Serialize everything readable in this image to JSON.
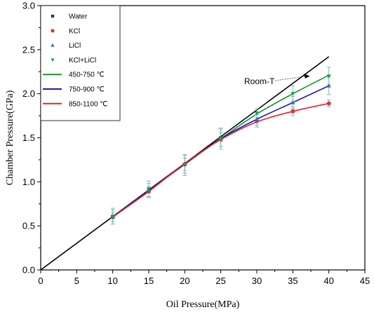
{
  "chart_data": {
    "type": "scatter",
    "xlabel": "Oil Pressure(MPa)",
    "ylabel": "Chamber Pressure(GPa)",
    "xlim": [
      0,
      45
    ],
    "ylim": [
      0.0,
      3.0
    ],
    "xticks": [
      "0",
      "5",
      "10",
      "15",
      "20",
      "25",
      "30",
      "35",
      "40",
      "45"
    ],
    "yticks": [
      "0.0",
      "0.5",
      "1.0",
      "1.5",
      "2.0",
      "2.5",
      "3.0"
    ],
    "grid": false,
    "legend_position": "top-left",
    "series": [
      {
        "name": "Water",
        "marker": "square",
        "color": "#333333",
        "x": [
          10,
          15,
          20,
          25
        ],
        "y": [
          0.6,
          0.9,
          1.2,
          1.5
        ]
      },
      {
        "name": "KCl",
        "marker": "circle",
        "color": "#e8302a",
        "x": [
          10,
          15,
          20,
          25,
          30,
          35,
          40
        ],
        "y": [
          0.6,
          0.89,
          1.2,
          1.48,
          1.69,
          1.8,
          1.89
        ],
        "err": [
          0.05,
          0.06,
          0.07,
          0.08,
          0.07,
          0.05,
          0.04
        ]
      },
      {
        "name": "LiCl",
        "marker": "triangle-up",
        "color": "#1f6fd0",
        "x": [
          10,
          15,
          20,
          25,
          30,
          35,
          40
        ],
        "y": [
          0.6,
          0.9,
          1.2,
          1.5,
          1.71,
          1.9,
          2.09
        ],
        "err": [
          0.08,
          0.08,
          0.1,
          0.1,
          0.07,
          0.07,
          0.1
        ]
      },
      {
        "name": "KCl+LiCl",
        "marker": "triangle-down",
        "color": "#17a548",
        "x": [
          10,
          15,
          20,
          25,
          30,
          35,
          40
        ],
        "y": [
          0.61,
          0.92,
          1.19,
          1.49,
          1.78,
          2.0,
          2.2
        ],
        "err": [
          0.09,
          0.09,
          0.12,
          0.12,
          0.05,
          0.09,
          0.1
        ]
      }
    ],
    "fits": [
      {
        "name": "450-750 ℃",
        "color": "#109a30",
        "x": [
          10,
          15,
          20,
          25,
          30,
          35,
          40
        ],
        "y": [
          0.6,
          0.9,
          1.2,
          1.49,
          1.77,
          2.0,
          2.21
        ]
      },
      {
        "name": "750-900 ℃",
        "color": "#1a1ab5",
        "x": [
          10,
          15,
          20,
          25,
          30,
          35,
          40
        ],
        "y": [
          0.6,
          0.9,
          1.2,
          1.49,
          1.71,
          1.9,
          2.09
        ]
      },
      {
        "name": "850-1100 ℃",
        "color": "#e8202a",
        "x": [
          10,
          15,
          20,
          25,
          30,
          35,
          40
        ],
        "y": [
          0.6,
          0.89,
          1.21,
          1.48,
          1.68,
          1.8,
          1.89
        ]
      }
    ],
    "reference_line": {
      "label": "Room-T",
      "color": "#000000",
      "x": [
        0,
        40
      ],
      "y": [
        0.0,
        2.42
      ]
    },
    "annotations": [
      {
        "text": "Room-T",
        "points_to": {
          "x": 36,
          "y": 2.19
        }
      }
    ]
  }
}
